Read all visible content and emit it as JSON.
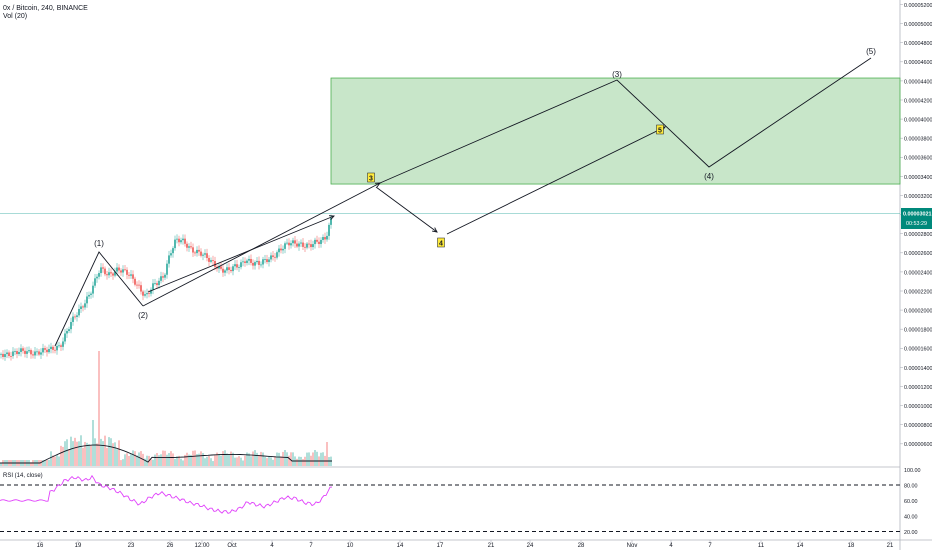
{
  "header": {
    "symbol_line": "0x / Bitcoin, 240, BINANCE",
    "volume_label": "Vol (20)"
  },
  "price_panel": {
    "price_ticks": [
      "0.00005200",
      "0.00005000",
      "0.00004800",
      "0.00004600",
      "0.00004400",
      "0.00004200",
      "0.00004000",
      "0.00003800",
      "0.00003600",
      "0.00003400",
      "0.00003200",
      "0.00003000",
      "0.00002800",
      "0.00002600",
      "0.00002400",
      "0.00002200",
      "0.00002000",
      "0.00001800",
      "0.00001600",
      "0.00001400",
      "0.00001200",
      "0.00001000",
      "0.00000800",
      "0.00000600"
    ],
    "current_price_label": "0.00003021",
    "countdown_label": "00:53:29",
    "target_zone": {
      "low": 3.32e-05,
      "high": 4.43e-05
    }
  },
  "rsi_panel": {
    "label": "RSI (14, close)",
    "ticks": [
      "100.00",
      "80.00",
      "60.00",
      "40.00",
      "20.00"
    ]
  },
  "x_axis": {
    "ticks": [
      "16",
      "19",
      "23",
      "26",
      "12:00",
      "Oct",
      "4",
      "7",
      "10",
      "14",
      "17",
      "21",
      "24",
      "28",
      "Nov",
      "4",
      "7",
      "11",
      "14",
      "18",
      "21"
    ]
  },
  "chart_data": {
    "type": "candlestick",
    "price": {
      "x": [
        "16",
        "19",
        "23",
        "26",
        "Oct",
        "4",
        "7"
      ],
      "ylim": [
        5e-06,
        5.3e-05
      ]
    },
    "elliott_wave": {
      "history_points": [
        {
          "label": "(1)",
          "price": 2.67e-05
        },
        {
          "label": "(2)",
          "price": 2.1e-05
        }
      ],
      "primary_projection": [
        {
          "label": "(3)",
          "price": 4.42e-05
        },
        {
          "label": "(4)",
          "price": 3.52e-05
        },
        {
          "label": "(5)",
          "price": 4.69e-05
        }
      ],
      "sub_wave_labels": [
        "3",
        "4",
        "5"
      ]
    },
    "volume": {
      "ma_period": 20
    },
    "rsi": {
      "period": 14,
      "levels": [
        80,
        20
      ],
      "ylim": [
        0,
        100
      ]
    }
  },
  "colors": {
    "up": "#26a69a",
    "down": "#ef5350",
    "zone_fill": "#c8e6c9",
    "zone_border": "#4caf50",
    "price_badge": "#00897b",
    "rsi_line": "#e040fb",
    "wave_label_bg": "#ffeb3b"
  }
}
